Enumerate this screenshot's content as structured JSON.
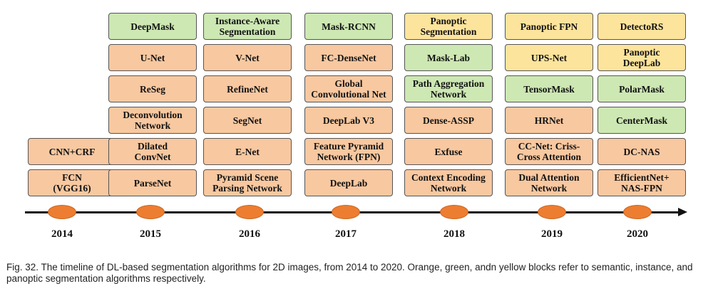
{
  "timeline": [
    {
      "year": "2014",
      "blocks": [
        {
          "text": "FCN\n(VGG16)",
          "type": "semantic"
        },
        {
          "text": "CNN+CRF",
          "type": "semantic"
        }
      ]
    },
    {
      "year": "2015",
      "blocks": [
        {
          "text": "ParseNet",
          "type": "semantic"
        },
        {
          "text": "Dilated\nConvNet",
          "type": "semantic"
        },
        {
          "text": "Deconvolution\nNetwork",
          "type": "semantic"
        },
        {
          "text": "ReSeg",
          "type": "semantic"
        },
        {
          "text": "U-Net",
          "type": "semantic"
        },
        {
          "text": "DeepMask",
          "type": "instance"
        }
      ]
    },
    {
      "year": "2016",
      "blocks": [
        {
          "text": "Pyramid Scene\nParsing Network",
          "type": "semantic"
        },
        {
          "text": "E-Net",
          "type": "semantic"
        },
        {
          "text": "SegNet",
          "type": "semantic"
        },
        {
          "text": "RefineNet",
          "type": "semantic"
        },
        {
          "text": "V-Net",
          "type": "semantic"
        },
        {
          "text": "Instance-Aware\nSegmentation",
          "type": "instance"
        }
      ]
    },
    {
      "year": "2017",
      "blocks": [
        {
          "text": "DeepLab",
          "type": "semantic"
        },
        {
          "text": "Feature Pyramid\nNetwork (FPN)",
          "type": "semantic"
        },
        {
          "text": "DeepLab V3",
          "type": "semantic"
        },
        {
          "text": "Global\nConvolutional Net",
          "type": "semantic"
        },
        {
          "text": "FC-DenseNet",
          "type": "semantic"
        },
        {
          "text": "Mask-RCNN",
          "type": "instance"
        }
      ]
    },
    {
      "year": "2018",
      "blocks": [
        {
          "text": "Context Encoding\nNetwork",
          "type": "semantic"
        },
        {
          "text": "Exfuse",
          "type": "semantic"
        },
        {
          "text": "Dense-ASSP",
          "type": "semantic"
        },
        {
          "text": "Path Aggregation\nNetwork",
          "type": "instance"
        },
        {
          "text": "Mask-Lab",
          "type": "instance"
        },
        {
          "text": "Panoptic\nSegmentation",
          "type": "panoptic"
        }
      ]
    },
    {
      "year": "2019",
      "blocks": [
        {
          "text": "Dual Attention\nNetwork",
          "type": "semantic"
        },
        {
          "text": "CC-Net: Criss-\nCross Attention",
          "type": "semantic"
        },
        {
          "text": "HRNet",
          "type": "semantic"
        },
        {
          "text": "TensorMask",
          "type": "instance"
        },
        {
          "text": "UPS-Net",
          "type": "panoptic"
        },
        {
          "text": "Panoptic FPN",
          "type": "panoptic"
        }
      ]
    },
    {
      "year": "2020",
      "blocks": [
        {
          "text": "EfficientNet+\nNAS-FPN",
          "type": "semantic"
        },
        {
          "text": "DC-NAS",
          "type": "semantic"
        },
        {
          "text": "CenterMask",
          "type": "instance"
        },
        {
          "text": "PolarMask",
          "type": "instance"
        },
        {
          "text": "Panoptic\nDeepLab",
          "type": "panoptic"
        },
        {
          "text": "DetectoRS",
          "type": "panoptic"
        }
      ]
    }
  ],
  "colors": {
    "semantic": "#f8c8a0",
    "instance": "#cde8b3",
    "panoptic": "#fde49c",
    "marker": "#ed7d31"
  },
  "caption": "Fig. 32. The timeline of DL-based segmentation algorithms for 2D images, from 2014 to 2020. Orange, green, andn yellow blocks refer to semantic, instance, and panoptic segmentation algorithms respectively."
}
